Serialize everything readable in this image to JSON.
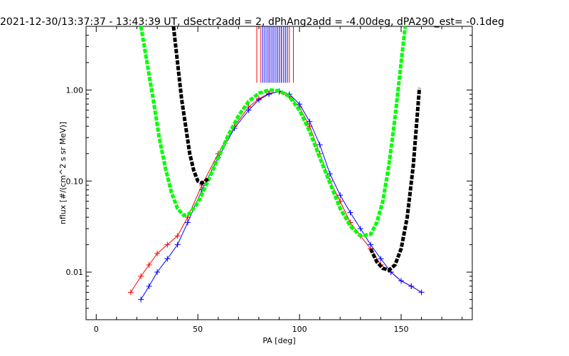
{
  "chart_data": {
    "type": "scatter",
    "title": "2021-12-30/13:37:37 - 13:43:39 UT, dSectr2add = 2, dPhAng2add = -4.00deg, dPA290_est=  -0.1deg",
    "xlabel": "PA [deg]",
    "ylabel": "nflux [#/(cm^2 s sr MeV)]",
    "xlim": [
      -5,
      185
    ],
    "ylim": [
      0.003,
      5.0
    ],
    "yscale": "log",
    "grid": false,
    "x_ticks": [
      0,
      50,
      100,
      150
    ],
    "x_tick_labels": [
      "0",
      "50",
      "100",
      "150"
    ],
    "y_ticks": [
      0.01,
      0.1,
      1.0
    ],
    "y_tick_labels": [
      "0.01",
      "0.10",
      "1.00"
    ],
    "colors": {
      "red_traces": "#ff0000",
      "blue_traces": "#0000ff",
      "fit_green": "#00ff00",
      "fit_black": "#000000"
    },
    "series": [
      {
        "color_key": "red_traces",
        "style": "line+plus",
        "x": [
          17,
          22,
          26,
          30,
          35,
          40,
          45,
          52,
          60,
          68,
          75,
          80,
          85,
          90,
          95,
          100,
          105,
          110,
          115,
          120,
          125,
          130,
          135,
          140,
          145,
          150,
          155,
          160
        ],
        "y": [
          0.006,
          0.009,
          0.012,
          0.016,
          0.02,
          0.025,
          0.04,
          0.09,
          0.2,
          0.4,
          0.65,
          0.8,
          0.92,
          0.95,
          0.85,
          0.65,
          0.4,
          0.2,
          0.1,
          0.06,
          0.035,
          0.025,
          0.018,
          0.012,
          0.01,
          0.008,
          0.007,
          0.006
        ]
      },
      {
        "color_key": "blue_traces",
        "style": "line+plus",
        "x": [
          22,
          26,
          30,
          35,
          40,
          45,
          52,
          60,
          68,
          75,
          80,
          85,
          90,
          95,
          100,
          105,
          110,
          115,
          120,
          125,
          130,
          135,
          140,
          145,
          150,
          155,
          160
        ],
        "y": [
          0.005,
          0.007,
          0.01,
          0.014,
          0.02,
          0.035,
          0.08,
          0.18,
          0.38,
          0.6,
          0.78,
          0.9,
          0.97,
          0.9,
          0.7,
          0.45,
          0.25,
          0.12,
          0.07,
          0.045,
          0.03,
          0.02,
          0.014,
          0.01,
          0.008,
          0.007,
          0.006
        ]
      },
      {
        "color_key": "fit_green",
        "style": "dashed-thick",
        "x": [
          22,
          25,
          28,
          31,
          34,
          37,
          40,
          43,
          46,
          50,
          55,
          60,
          65,
          70,
          75,
          80,
          85,
          90,
          95,
          100,
          105,
          110,
          115,
          120,
          125,
          130,
          135,
          138,
          141,
          144,
          147,
          150,
          152
        ],
        "y": [
          5.0,
          2.0,
          0.8,
          0.3,
          0.14,
          0.075,
          0.05,
          0.042,
          0.044,
          0.058,
          0.1,
          0.18,
          0.32,
          0.52,
          0.75,
          0.92,
          1.0,
          0.98,
          0.85,
          0.6,
          0.35,
          0.18,
          0.095,
          0.05,
          0.032,
          0.025,
          0.026,
          0.035,
          0.06,
          0.15,
          0.5,
          2.0,
          5.0
        ]
      },
      {
        "color_key": "fit_black",
        "style": "dashed-thick",
        "x": [
          38,
          40,
          42,
          44,
          46,
          48,
          50,
          52,
          55
        ],
        "y": [
          5.0,
          2.0,
          0.8,
          0.4,
          0.2,
          0.13,
          0.1,
          0.095,
          0.105
        ]
      },
      {
        "color_key": "fit_black",
        "style": "dashed-thick",
        "x": [
          135,
          138,
          141,
          144,
          147,
          150,
          153,
          156,
          159
        ],
        "y": [
          0.018,
          0.013,
          0.011,
          0.0105,
          0.012,
          0.018,
          0.04,
          0.15,
          1.05
        ]
      }
    ],
    "vertical_lines": {
      "y_from": 1.2,
      "y_to": 5.0,
      "red_x": [
        79,
        81,
        83,
        85,
        87,
        89,
        91,
        93,
        95,
        97
      ],
      "blue_x": [
        82,
        83,
        84,
        85,
        86,
        87,
        88,
        89,
        90,
        91,
        92,
        93,
        94
      ]
    }
  }
}
